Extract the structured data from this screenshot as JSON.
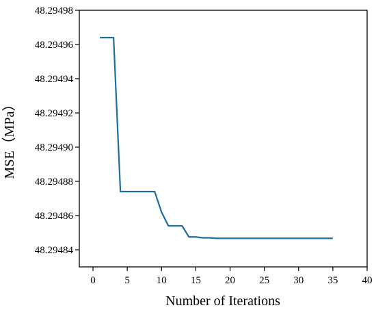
{
  "chart_data": {
    "type": "line",
    "xlabel": "Number of Iterations",
    "ylabel": "MSE（MPa）",
    "xlim": [
      -2,
      40
    ],
    "ylim": [
      48.29483,
      48.29498
    ],
    "xticks": [
      0,
      5,
      10,
      15,
      20,
      25,
      30,
      35,
      40
    ],
    "xtick_labels": [
      "0",
      "5",
      "10",
      "15",
      "20",
      "25",
      "30",
      "35",
      "40"
    ],
    "yticks": [
      48.29484,
      48.29486,
      48.29488,
      48.2949,
      48.29492,
      48.29494,
      48.29496,
      48.29498
    ],
    "ytick_labels": [
      "48.29484",
      "48.29486",
      "48.29488",
      "48.29490",
      "48.29492",
      "48.29494",
      "48.29496",
      "48.29498"
    ],
    "grid": false,
    "line_color": "#1f6e99",
    "series": [
      {
        "x": [
          1,
          3,
          4,
          9,
          10,
          11,
          13,
          14,
          15,
          16,
          17,
          18,
          35
        ],
        "y": [
          48.294964,
          48.294964,
          48.294874,
          48.294874,
          48.294862,
          48.294854,
          48.294854,
          48.2948475,
          48.2948475,
          48.294847,
          48.294847,
          48.2948467,
          48.2948467
        ]
      }
    ]
  }
}
